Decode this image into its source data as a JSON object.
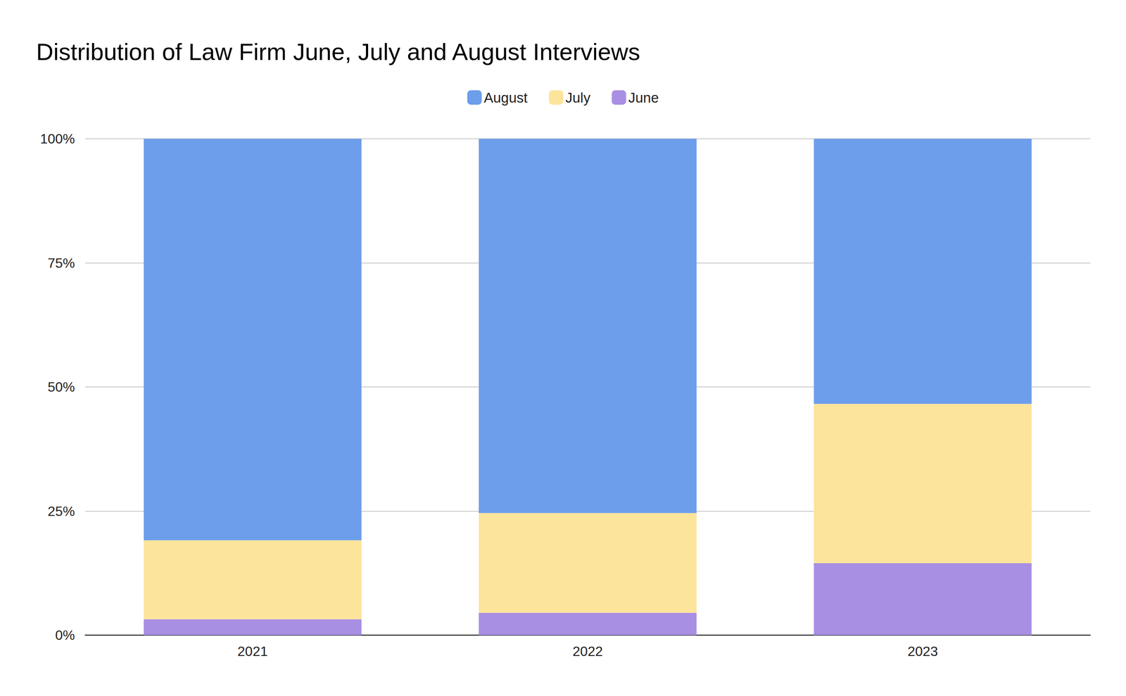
{
  "chart_data": {
    "type": "bar",
    "title": "Distribution of Law Firm June, July and August Interviews",
    "categories": [
      "2021",
      "2022",
      "2023"
    ],
    "series": [
      {
        "name": "June",
        "color": "#a98fe3",
        "values": [
          3.2,
          4.5,
          14.5
        ]
      },
      {
        "name": "July",
        "color": "#fde49b",
        "values": [
          15.9,
          20.1,
          32.1
        ]
      },
      {
        "name": "August",
        "color": "#6d9eeb",
        "values": [
          80.9,
          75.4,
          53.4
        ]
      }
    ],
    "ylim": [
      0,
      100
    ],
    "yticks": [
      {
        "value": 0,
        "label": "0%"
      },
      {
        "value": 25,
        "label": "25%"
      },
      {
        "value": 50,
        "label": "50%"
      },
      {
        "value": 75,
        "label": "75%"
      },
      {
        "value": 100,
        "label": "100%"
      }
    ],
    "grid": true,
    "stacked": true,
    "legend": "top"
  }
}
